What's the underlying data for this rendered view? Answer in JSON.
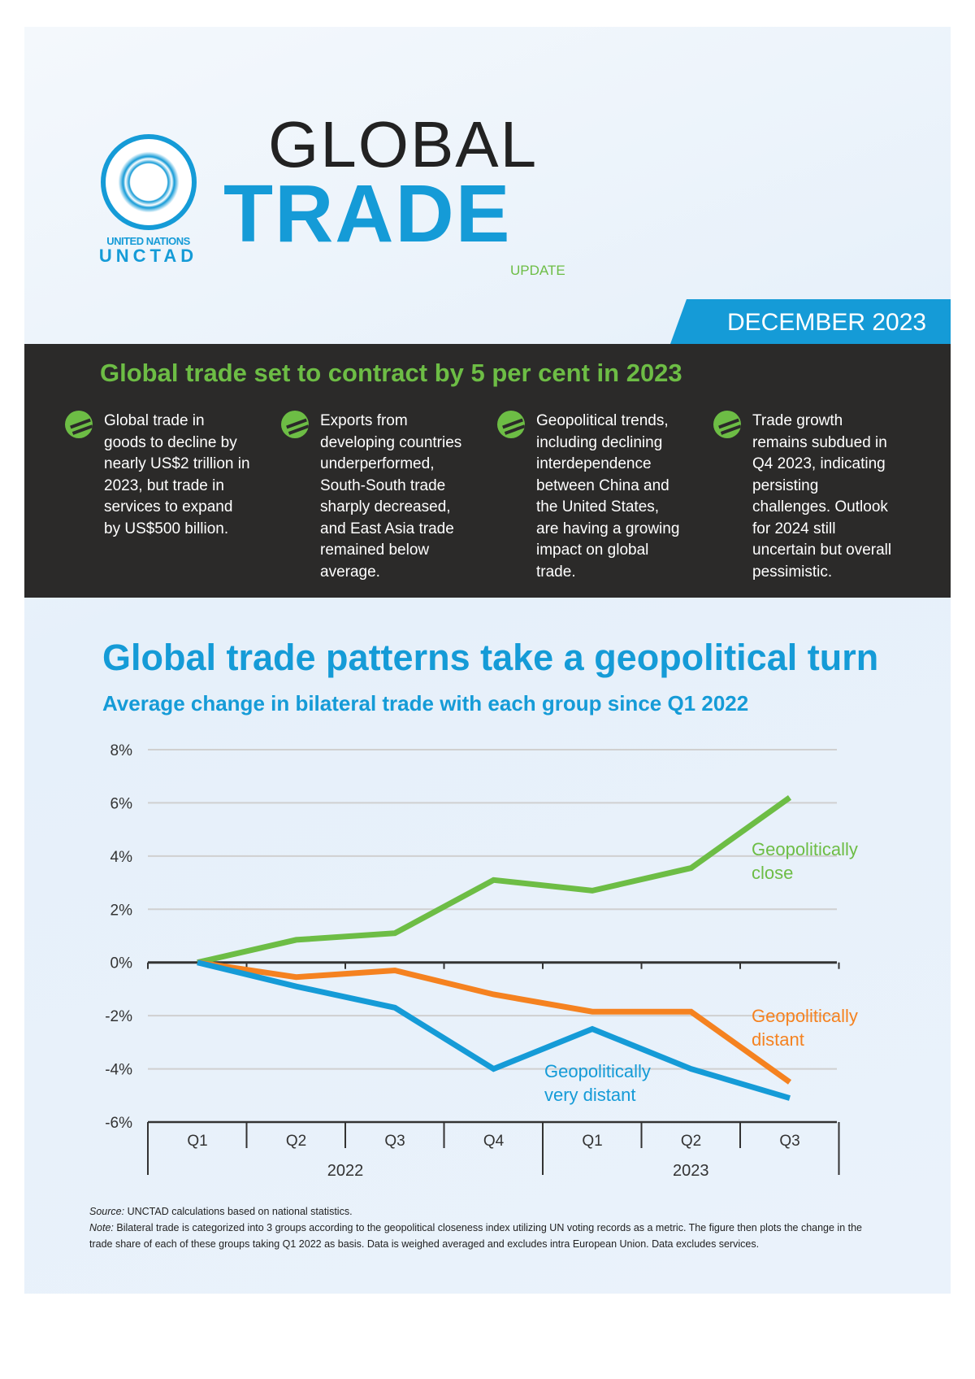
{
  "header": {
    "logo_line1": "UNITED NATIONS",
    "logo_line2": "UNCTAD",
    "title_top": "GLOBAL",
    "title_main": "TRADE",
    "title_sub": "UPDATE",
    "date": "DECEMBER 2023"
  },
  "highlights": {
    "headline": "Global trade set to contract by 5 per cent in 2023",
    "bullets": [
      "Global trade in goods to decline by nearly US$2 trillion in 2023, but trade in services to expand by US$500 billion.",
      "Exports from developing countries underperformed, South-South trade sharply decreased, and East Asia trade remained below average.",
      "Geopolitical trends, including declining interdependence between China and the United States, are having a growing impact on global trade.",
      "Trade growth remains subdued in Q4 2023, indicating persisting challenges. Outlook for 2024 still uncertain but overall pessimistic."
    ]
  },
  "chart_data": {
    "type": "line",
    "title": "Global trade patterns take a geopolitical turn",
    "subtitle": "Average change in bilateral trade with each group since Q1 2022",
    "categories": [
      "Q1",
      "Q2",
      "Q3",
      "Q4",
      "Q1",
      "Q2",
      "Q3"
    ],
    "year_groups": [
      {
        "label": "2022",
        "span": 4
      },
      {
        "label": "2023",
        "span": 3
      }
    ],
    "ylim": [
      -6,
      8
    ],
    "yticks": [
      "8%",
      "6%",
      "4%",
      "2%",
      "0%",
      "-2%",
      "-4%",
      "-6%"
    ],
    "grid": true,
    "series": [
      {
        "name": "Geopolitically close",
        "color": "#6dbd45",
        "values": [
          0,
          0.85,
          1.1,
          3.1,
          2.7,
          3.55,
          6.2
        ]
      },
      {
        "name": "Geopolitically distant",
        "color": "#f58220",
        "values": [
          0,
          -0.55,
          -0.3,
          -1.2,
          -1.85,
          -1.85,
          -4.5
        ]
      },
      {
        "name": "Geopolitically very distant",
        "color": "#159bd7",
        "values": [
          0,
          -0.9,
          -1.7,
          -4.0,
          -2.5,
          -4.0,
          -5.1
        ]
      }
    ]
  },
  "footer": {
    "source_label": "Source:",
    "source": " UNCTAD calculations based on national statistics.",
    "note_label": "Note:",
    "note": " Bilateral trade is categorized into 3 groups according to the geopolitical closeness index utilizing UN voting records as a metric. The figure then plots the change in the trade share of each of these groups taking Q1 2022 as basis. Data is weighed averaged and excludes intra European Union. Data excludes services."
  }
}
